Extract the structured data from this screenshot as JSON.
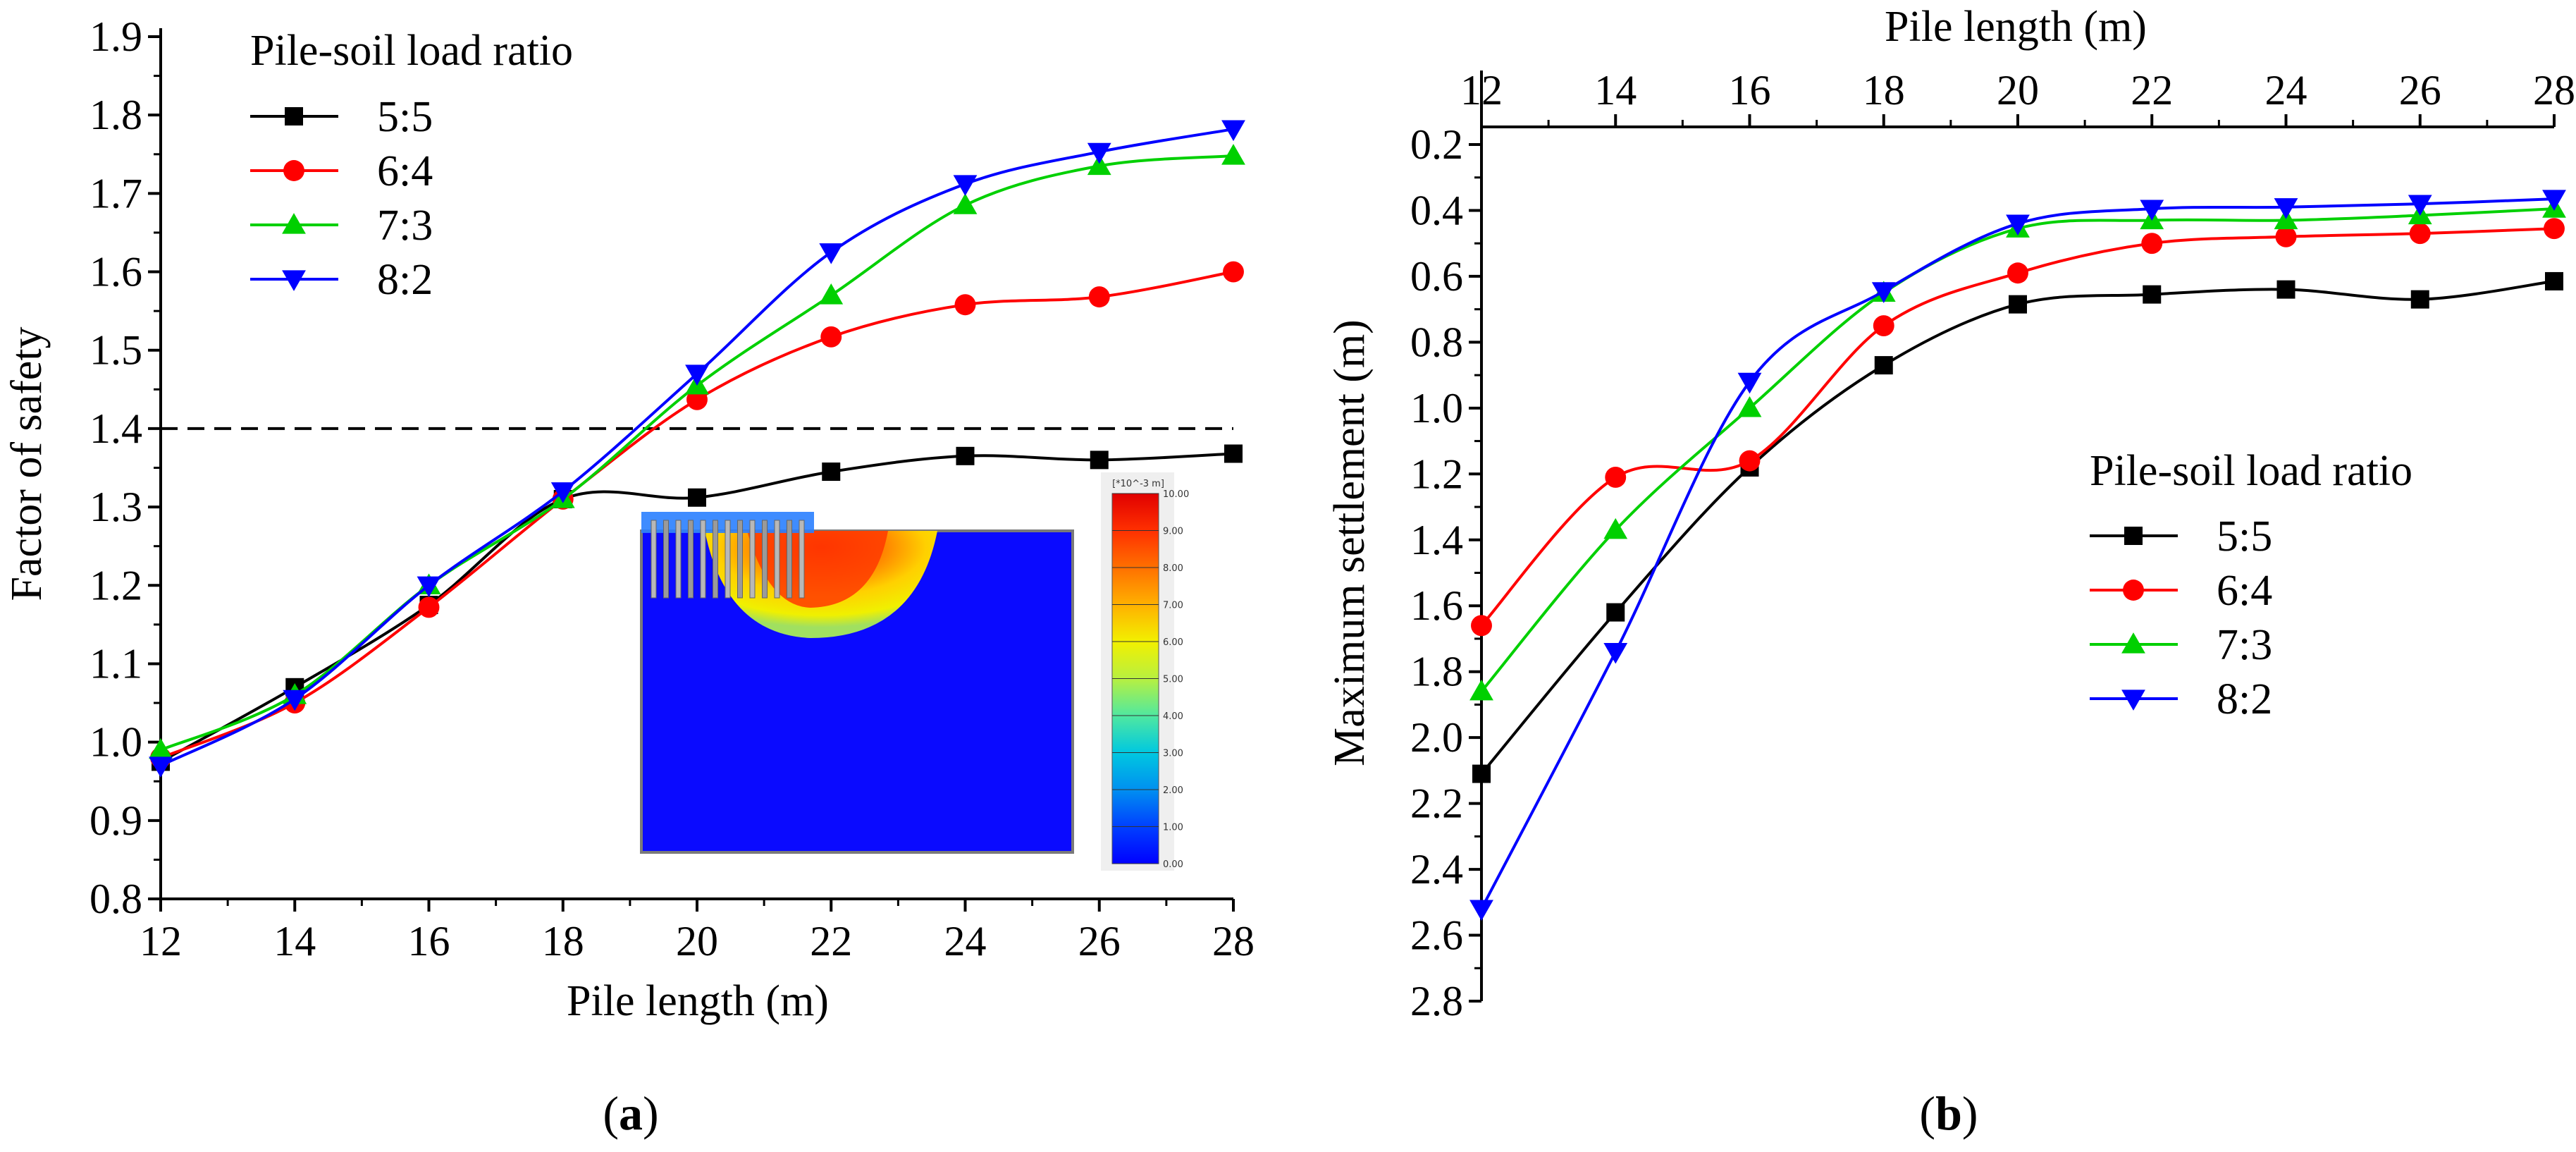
{
  "chart_data": [
    {
      "type": "line",
      "panel_label": "a",
      "xlabel": "Pile length (m)",
      "ylabel": "Factor of safety",
      "xlim": [
        12,
        28
      ],
      "ylim": [
        0.8,
        1.9
      ],
      "x_ticks": [
        "12",
        "14",
        "16",
        "18",
        "20",
        "22",
        "24",
        "26",
        "28"
      ],
      "y_ticks": [
        "0.8",
        "0.9",
        "1.0",
        "1.1",
        "1.2",
        "1.3",
        "1.4",
        "1.5",
        "1.6",
        "1.7",
        "1.8",
        "1.9"
      ],
      "reference_line": {
        "y": 1.4,
        "style": "dashed"
      },
      "legend": {
        "title": "Pile-soil load ratio",
        "placement": "top-left"
      },
      "x": [
        12,
        14,
        16,
        18,
        20,
        22,
        24,
        26,
        28
      ],
      "series": [
        {
          "name": "5:5",
          "marker": "square",
          "color": "#000000",
          "values": [
            0.975,
            1.07,
            1.175,
            1.31,
            1.312,
            1.345,
            1.365,
            1.36,
            1.368
          ]
        },
        {
          "name": "6:4",
          "marker": "circle",
          "color": "#ff0000",
          "values": [
            0.98,
            1.05,
            1.172,
            1.31,
            1.437,
            1.517,
            1.558,
            1.568,
            1.6
          ]
        },
        {
          "name": "7:3",
          "marker": "triangle-up",
          "color": "#00d000",
          "values": [
            0.99,
            1.06,
            1.2,
            1.31,
            1.455,
            1.57,
            1.685,
            1.735,
            1.748
          ]
        },
        {
          "name": "8:2",
          "marker": "triangle-down",
          "color": "#0000ff",
          "values": [
            0.97,
            1.055,
            1.2,
            1.32,
            1.47,
            1.625,
            1.712,
            1.753,
            1.782
          ]
        }
      ],
      "inset": {
        "description_shown": "settlement contour plot",
        "colorbar_unit": "[*10^-3 m]",
        "colorbar_ticks": [
          "10.00",
          "9.00",
          "8.00",
          "7.00",
          "6.00",
          "5.00",
          "4.00",
          "3.00",
          "2.00",
          "1.00",
          "0.00"
        ]
      }
    },
    {
      "type": "line",
      "panel_label": "b",
      "xlabel": "Pile length (m)",
      "ylabel": "Maximum settlement (m)",
      "xlim": [
        12,
        28
      ],
      "ylim": [
        0.2,
        2.8
      ],
      "y_inverted": true,
      "x_axis_position": "top",
      "x_ticks": [
        "12",
        "14",
        "16",
        "18",
        "20",
        "22",
        "24",
        "26",
        "28"
      ],
      "y_ticks": [
        "0.2",
        "0.4",
        "0.6",
        "0.8",
        "1.0",
        "1.2",
        "1.4",
        "1.6",
        "1.8",
        "2.0",
        "2.2",
        "2.4",
        "2.6",
        "2.8"
      ],
      "legend": {
        "title": "Pile-soil load ratio",
        "placement": "center-right"
      },
      "x": [
        12,
        14,
        16,
        18,
        20,
        22,
        24,
        26,
        28
      ],
      "series": [
        {
          "name": "5:5",
          "marker": "square",
          "color": "#000000",
          "values": [
            2.11,
            1.62,
            1.18,
            0.87,
            0.685,
            0.655,
            0.64,
            0.67,
            0.615
          ]
        },
        {
          "name": "6:4",
          "marker": "circle",
          "color": "#ff0000",
          "values": [
            1.66,
            1.21,
            1.16,
            0.75,
            0.59,
            0.5,
            0.48,
            0.47,
            0.455
          ]
        },
        {
          "name": "7:3",
          "marker": "triangle-up",
          "color": "#00d000",
          "values": [
            1.86,
            1.37,
            1.0,
            0.65,
            0.455,
            0.43,
            0.43,
            0.415,
            0.395
          ]
        },
        {
          "name": "8:2",
          "marker": "triangle-down",
          "color": "#0000ff",
          "values": [
            2.52,
            1.74,
            0.92,
            0.645,
            0.44,
            0.395,
            0.39,
            0.38,
            0.365
          ]
        }
      ]
    }
  ]
}
